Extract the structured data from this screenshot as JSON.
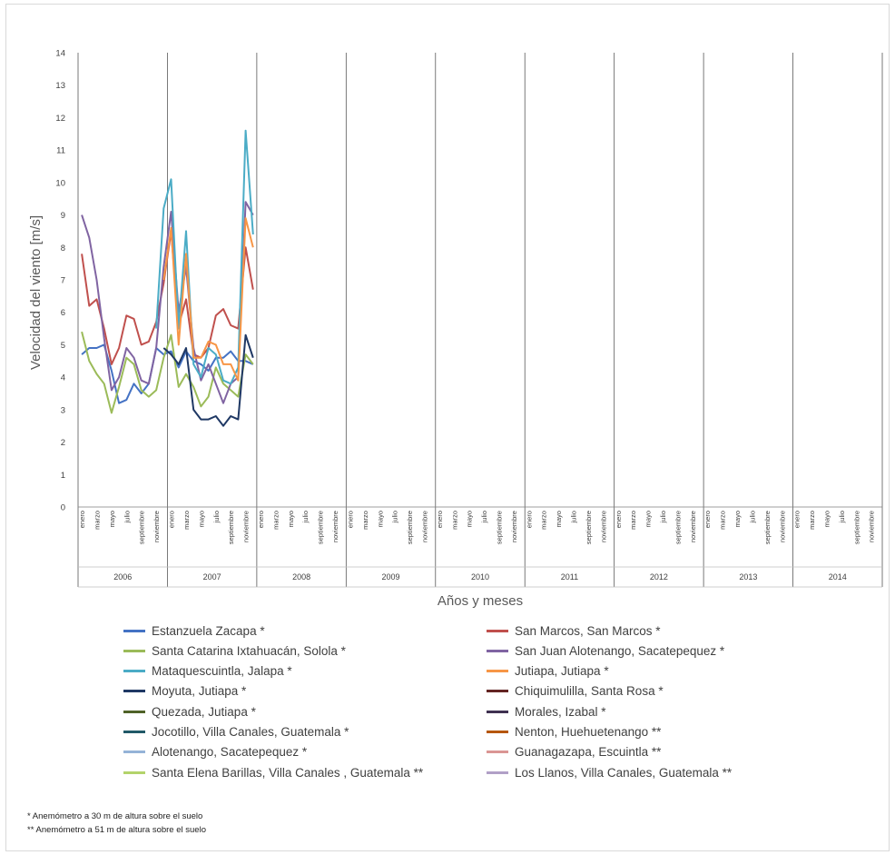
{
  "chart_data": {
    "type": "line",
    "ylabel": "Velocidad del viento [m/s]",
    "xlabel": "Años y meses",
    "ylim": [
      0,
      14
    ],
    "yticks": [
      "0",
      "1",
      "2",
      "3",
      "4",
      "5",
      "6",
      "7",
      "8",
      "9",
      "10",
      "11",
      "12",
      "13",
      "14"
    ],
    "years": [
      "2006",
      "2007",
      "2008",
      "2009",
      "2010",
      "2011",
      "2012",
      "2013",
      "2014"
    ],
    "month_labels": [
      "enero",
      "marzo",
      "mayo",
      "julio",
      "septiembre",
      "noviembre"
    ],
    "grid": "vertical year separators",
    "legend_position": "bottom",
    "series": [
      {
        "name": "Estanzuela Zacapa *",
        "color": "#4472c4",
        "values": [
          4.7,
          4.9,
          4.9,
          5.0,
          4.2,
          3.2,
          3.3,
          3.8,
          3.5,
          3.8,
          4.9,
          4.7,
          4.8,
          4.3,
          4.8,
          4.5,
          4.4,
          4.2,
          4.6,
          4.6,
          4.8,
          4.5,
          4.5,
          4.4
        ]
      },
      {
        "name": "San Marcos, San Marcos *",
        "color": "#c0504d",
        "values": [
          7.8,
          6.2,
          6.4,
          5.5,
          4.4,
          4.9,
          5.9,
          5.8,
          5.0,
          5.1,
          5.7,
          6.9,
          8.5,
          5.6,
          6.4,
          4.7,
          4.6,
          4.9,
          5.9,
          6.1,
          5.6,
          5.5,
          8.0,
          6.7
        ]
      },
      {
        "name": "Santa Catarina Ixtahuacán, Solola *",
        "color": "#9bbb59",
        "values": [
          5.4,
          4.5,
          4.1,
          3.8,
          2.9,
          3.7,
          4.6,
          4.4,
          3.6,
          3.4,
          3.6,
          4.6,
          5.3,
          3.7,
          4.1,
          3.7,
          3.1,
          3.4,
          4.3,
          3.8,
          3.6,
          3.4,
          4.7,
          4.4
        ]
      },
      {
        "name": "San Juan Alotenango, Sacatepequez *",
        "color": "#8064a2",
        "values": [
          9.0,
          8.3,
          7.0,
          5.2,
          3.6,
          4.0,
          4.9,
          4.6,
          3.9,
          3.8,
          4.9,
          7.4,
          9.1,
          6.0,
          7.4,
          4.9,
          3.9,
          4.4,
          3.8,
          3.2,
          3.8,
          4.0,
          9.4,
          9.0
        ]
      },
      {
        "name": "Mataquescuintla, Jalapa *",
        "color": "#4bacc6",
        "values": [
          null,
          null,
          null,
          null,
          null,
          null,
          null,
          null,
          null,
          null,
          5.5,
          9.2,
          10.1,
          5.5,
          8.5,
          4.4,
          4.0,
          4.9,
          4.7,
          3.9,
          3.8,
          4.3,
          11.6,
          8.4
        ]
      },
      {
        "name": "Jutiapa, Jutiapa *",
        "color": "#f79646",
        "values": [
          null,
          null,
          null,
          null,
          null,
          null,
          null,
          null,
          null,
          null,
          null,
          7.0,
          8.6,
          5.0,
          7.8,
          4.6,
          4.6,
          5.1,
          5.0,
          4.4,
          4.4,
          3.9,
          8.9,
          8.0
        ]
      },
      {
        "name": "Moyuta, Jutiapa *",
        "color": "#1f3864",
        "values": [
          null,
          null,
          null,
          null,
          null,
          null,
          null,
          null,
          null,
          null,
          null,
          4.9,
          4.7,
          4.4,
          4.9,
          3.0,
          2.7,
          2.7,
          2.8,
          2.5,
          2.8,
          2.7,
          5.3,
          4.6
        ]
      },
      {
        "name": "Chiquimulilla, Santa Rosa *",
        "color": "#632523",
        "values": [
          null,
          null,
          null,
          null,
          null,
          null,
          null,
          null,
          null,
          null,
          null,
          null,
          null,
          null,
          null,
          null,
          null,
          null,
          null,
          null,
          null,
          null,
          null,
          null
        ]
      },
      {
        "name": "Quezada, Jutiapa *",
        "color": "#4f6228",
        "values": [
          null,
          null,
          null,
          null,
          null,
          null,
          null,
          null,
          null,
          null,
          null,
          null,
          null,
          null,
          null,
          null,
          null,
          null,
          null,
          null,
          null,
          null,
          null,
          null
        ]
      },
      {
        "name": "Morales, Izabal *",
        "color": "#3f3151",
        "values": [
          null,
          null,
          null,
          null,
          null,
          null,
          null,
          null,
          null,
          null,
          null,
          null,
          null,
          null,
          null,
          null,
          null,
          null,
          null,
          null,
          null,
          null,
          null,
          null
        ]
      },
      {
        "name": "Jocotillo, Villa Canales, Guatemala *",
        "color": "#215968",
        "values": [
          null,
          null,
          null,
          null,
          null,
          null,
          null,
          null,
          null,
          null,
          null,
          null,
          null,
          null,
          null,
          null,
          null,
          null,
          null,
          null,
          null,
          null,
          null,
          null
        ]
      },
      {
        "name": "Nenton, Huehuetenango **",
        "color": "#b65708",
        "values": [
          null,
          null,
          null,
          null,
          null,
          null,
          null,
          null,
          null,
          null,
          null,
          null,
          null,
          null,
          null,
          null,
          null,
          null,
          null,
          null,
          null,
          null,
          null,
          null
        ]
      },
      {
        "name": "Alotenango, Sacatepequez *",
        "color": "#95b3d7",
        "values": [
          null,
          null,
          null,
          null,
          null,
          null,
          null,
          null,
          null,
          null,
          null,
          null,
          null,
          null,
          null,
          null,
          null,
          null,
          null,
          null,
          null,
          null,
          null,
          null
        ]
      },
      {
        "name": "Guanagazapa, Escuintla **",
        "color": "#da9694",
        "values": [
          null,
          null,
          null,
          null,
          null,
          null,
          null,
          null,
          null,
          null,
          null,
          null,
          null,
          null,
          null,
          null,
          null,
          null,
          null,
          null,
          null,
          null,
          null,
          null
        ]
      },
      {
        "name": "Santa Elena Barillas, Villa Canales , Guatemala **",
        "color": "#b3d36b",
        "values": [
          null,
          null,
          null,
          null,
          null,
          null,
          null,
          null,
          null,
          null,
          null,
          null,
          null,
          null,
          null,
          null,
          null,
          null,
          null,
          null,
          null,
          null,
          null,
          null
        ]
      },
      {
        "name": "Los Llanos, Villa Canales, Guatemala **",
        "color": "#b1a0c7",
        "values": [
          null,
          null,
          null,
          null,
          null,
          null,
          null,
          null,
          null,
          null,
          null,
          null,
          null,
          null,
          null,
          null,
          null,
          null,
          null,
          null,
          null,
          null,
          null,
          null
        ]
      }
    ]
  },
  "legend_items": [
    {
      "label": "Estanzuela Zacapa *",
      "color": "#4472c4"
    },
    {
      "label": "San Marcos, San Marcos *",
      "color": "#c0504d"
    },
    {
      "label": "Santa Catarina Ixtahuacán, Solola *",
      "color": "#9bbb59"
    },
    {
      "label": "San Juan Alotenango, Sacatepequez *",
      "color": "#8064a2"
    },
    {
      "label": "Mataquescuintla, Jalapa *",
      "color": "#4bacc6"
    },
    {
      "label": "Jutiapa, Jutiapa *",
      "color": "#f79646"
    },
    {
      "label": "Moyuta, Jutiapa *",
      "color": "#1f3864"
    },
    {
      "label": "Chiquimulilla, Santa Rosa *",
      "color": "#632523"
    },
    {
      "label": "Quezada, Jutiapa *",
      "color": "#4f6228"
    },
    {
      "label": "Morales, Izabal *",
      "color": "#3f3151"
    },
    {
      "label": "Jocotillo, Villa Canales, Guatemala *",
      "color": "#215968"
    },
    {
      "label": "Nenton, Huehuetenango **",
      "color": "#b65708"
    },
    {
      "label": "Alotenango, Sacatepequez *",
      "color": "#95b3d7"
    },
    {
      "label": "Guanagazapa, Escuintla **",
      "color": "#da9694"
    },
    {
      "label": "Santa Elena Barillas, Villa Canales , Guatemala **",
      "color": "#b3d36b"
    },
    {
      "label": "Los Llanos, Villa Canales, Guatemala **",
      "color": "#b1a0c7"
    }
  ],
  "footnotes": {
    "one_star": "* Anemómetro a 30 m de altura sobre el suelo",
    "two_star": "** Anemómetro a 51 m de altura sobre el suelo"
  }
}
